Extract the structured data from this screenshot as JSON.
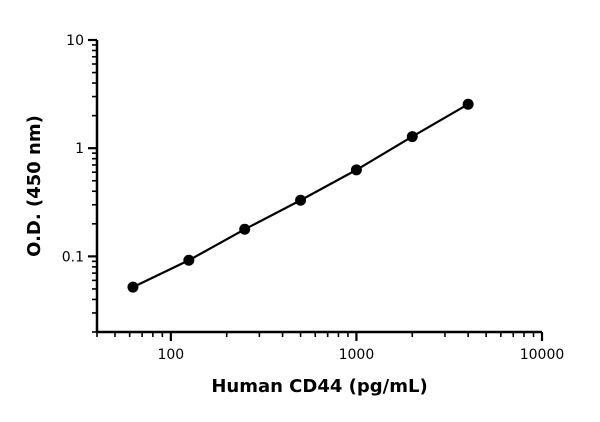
{
  "chart_data": {
    "type": "scatter",
    "title": "",
    "xlabel": "Human CD44 (pg/mL)",
    "ylabel": "O.D. (450 nm)",
    "x_scale": "log",
    "y_scale": "log",
    "xlim": [
      40,
      10000
    ],
    "ylim": [
      0.02,
      10
    ],
    "x_ticks": [
      100,
      1000,
      10000
    ],
    "x_tick_labels": [
      "100",
      "1000",
      "10000"
    ],
    "y_ticks": [
      0.1,
      1,
      10
    ],
    "y_tick_labels": [
      "0.1",
      "1",
      "10"
    ],
    "grid": false,
    "legend": "none",
    "fit_line": true,
    "series": [
      {
        "x": [
          62.5,
          125,
          250,
          500,
          1000,
          2000,
          4000
        ],
        "y": [
          0.052,
          0.092,
          0.178,
          0.33,
          0.63,
          1.28,
          2.55
        ]
      }
    ]
  }
}
